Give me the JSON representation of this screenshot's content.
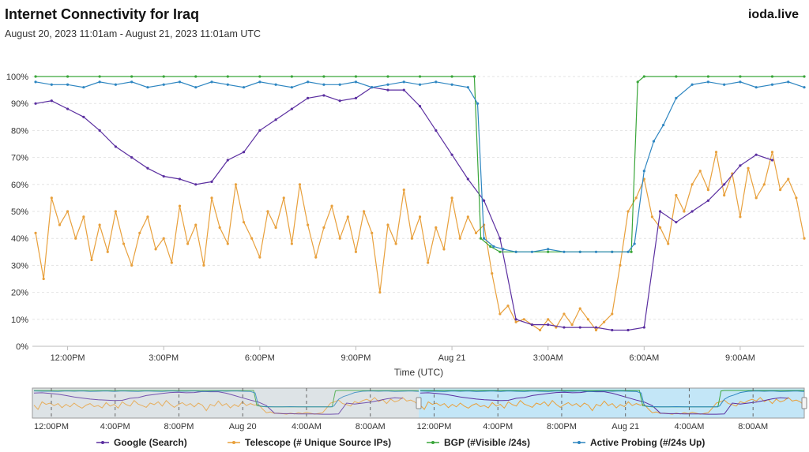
{
  "header": {
    "title": "Internet Connectivity for Iraq",
    "subtitle": "August 20, 2023 11:01am - August 21, 2023 11:01am UTC",
    "brand": "ioda.live"
  },
  "colors": {
    "google": "#5b2fa0",
    "telescope": "#e8a03c",
    "bgp": "#3aa63a",
    "probing": "#2e86c1",
    "navigator_selection": "#a9dcf3",
    "navigator_unselected": "#dde3e6"
  },
  "chart_data": {
    "type": "line",
    "xlabel": "Time (UTC)",
    "ylabel": "",
    "x_unit": "hours_since_2023-08-20T00:00Z",
    "xlim": [
      10.9,
      35.0
    ],
    "ylim": [
      0,
      100
    ],
    "y_ticks": [
      "0%",
      "10%",
      "20%",
      "30%",
      "40%",
      "50%",
      "60%",
      "70%",
      "80%",
      "90%",
      "100%"
    ],
    "x_ticks": [
      {
        "label": "12:00PM",
        "x": 12
      },
      {
        "label": "3:00PM",
        "x": 15
      },
      {
        "label": "6:00PM",
        "x": 18
      },
      {
        "label": "9:00PM",
        "x": 21
      },
      {
        "label": "Aug 21",
        "x": 24
      },
      {
        "label": "3:00AM",
        "x": 27
      },
      {
        "label": "6:00AM",
        "x": 30
      },
      {
        "label": "9:00AM",
        "x": 33
      }
    ],
    "legend_position": "bottom",
    "series": [
      {
        "name": "Google (Search)",
        "color": "#5b2fa0",
        "x": [
          11.0,
          11.5,
          12.0,
          12.5,
          13.0,
          13.5,
          14.0,
          14.5,
          15.0,
          15.5,
          16.0,
          16.5,
          17.0,
          17.5,
          18.0,
          18.5,
          19.0,
          19.5,
          20.0,
          20.5,
          21.0,
          21.5,
          22.0,
          22.5,
          23.0,
          23.5,
          24.0,
          24.5,
          25.0,
          25.5,
          26.0,
          26.5,
          27.0,
          27.5,
          28.0,
          28.5,
          29.0,
          29.5,
          30.0,
          30.5,
          31.0,
          31.5,
          32.0,
          32.5,
          33.0,
          33.5,
          34.0
        ],
        "y": [
          90,
          91,
          88,
          85,
          80,
          74,
          70,
          66,
          63,
          62,
          60,
          61,
          69,
          72,
          80,
          84,
          88,
          92,
          93,
          91,
          92,
          96,
          95,
          95,
          89,
          80,
          71,
          62,
          54,
          40,
          10,
          8,
          8,
          7,
          7,
          7,
          6,
          6,
          7,
          50,
          46,
          50,
          54,
          60,
          67,
          71,
          69
        ]
      },
      {
        "name": "Telescope (# Unique Source IPs)",
        "color": "#e8a03c",
        "x": [
          11.0,
          11.25,
          11.5,
          11.75,
          12.0,
          12.25,
          12.5,
          12.75,
          13.0,
          13.25,
          13.5,
          13.75,
          14.0,
          14.25,
          14.5,
          14.75,
          15.0,
          15.25,
          15.5,
          15.75,
          16.0,
          16.25,
          16.5,
          16.75,
          17.0,
          17.25,
          17.5,
          17.75,
          18.0,
          18.25,
          18.5,
          18.75,
          19.0,
          19.25,
          19.5,
          19.75,
          20.0,
          20.25,
          20.5,
          20.75,
          21.0,
          21.25,
          21.5,
          21.75,
          22.0,
          22.25,
          22.5,
          22.75,
          23.0,
          23.25,
          23.5,
          23.75,
          24.0,
          24.25,
          24.5,
          24.75,
          25.0,
          25.25,
          25.5,
          25.75,
          26.0,
          26.25,
          26.5,
          26.75,
          27.0,
          27.25,
          27.5,
          27.75,
          28.0,
          28.25,
          28.5,
          28.75,
          29.0,
          29.25,
          29.5,
          29.75,
          30.0,
          30.25,
          30.5,
          30.75,
          31.0,
          31.25,
          31.5,
          31.75,
          32.0,
          32.25,
          32.5,
          32.75,
          33.0,
          33.25,
          33.5,
          33.75,
          34.0,
          34.25,
          34.5,
          34.75,
          35.0
        ],
        "y": [
          42,
          25,
          55,
          45,
          50,
          40,
          48,
          32,
          45,
          35,
          50,
          38,
          30,
          42,
          48,
          36,
          40,
          31,
          52,
          38,
          45,
          30,
          55,
          44,
          38,
          60,
          46,
          40,
          33,
          50,
          44,
          55,
          38,
          60,
          45,
          33,
          44,
          52,
          40,
          48,
          35,
          50,
          42,
          20,
          45,
          38,
          58,
          40,
          48,
          31,
          44,
          36,
          55,
          40,
          48,
          42,
          45,
          27,
          12,
          15,
          9,
          10,
          8,
          6,
          10,
          7,
          12,
          8,
          14,
          10,
          6,
          9,
          12,
          30,
          50,
          55,
          62,
          48,
          44,
          38,
          56,
          50,
          60,
          65,
          58,
          72,
          56,
          64,
          48,
          66,
          55,
          60,
          72,
          58,
          62,
          55,
          40
        ]
      },
      {
        "name": "BGP (#Visible /24s)",
        "color": "#3aa63a",
        "x": [
          11.0,
          12.0,
          13.0,
          14.0,
          15.0,
          16.0,
          17.0,
          18.0,
          19.0,
          20.0,
          21.0,
          22.0,
          23.0,
          24.0,
          24.7,
          24.9,
          25.2,
          25.5,
          26.0,
          27.0,
          28.0,
          29.0,
          29.6,
          29.8,
          30.0,
          31.0,
          32.0,
          33.0,
          34.0,
          35.0
        ],
        "y": [
          100,
          100,
          100,
          100,
          100,
          100,
          100,
          100,
          100,
          100,
          100,
          100,
          100,
          100,
          100,
          40,
          37,
          35,
          35,
          35,
          35,
          35,
          35,
          98,
          100,
          100,
          100,
          100,
          100,
          100
        ]
      },
      {
        "name": "Active Probing (#/24s Up)",
        "color": "#2e86c1",
        "x": [
          11.0,
          11.5,
          12.0,
          12.5,
          13.0,
          13.5,
          14.0,
          14.5,
          15.0,
          15.5,
          16.0,
          16.5,
          17.0,
          17.5,
          18.0,
          18.5,
          19.0,
          19.5,
          20.0,
          20.5,
          21.0,
          21.5,
          22.0,
          22.5,
          23.0,
          23.5,
          24.0,
          24.5,
          24.8,
          25.0,
          25.3,
          25.6,
          26.0,
          26.5,
          27.0,
          27.5,
          28.0,
          28.5,
          29.0,
          29.5,
          29.7,
          30.0,
          30.3,
          30.6,
          31.0,
          31.5,
          32.0,
          32.5,
          33.0,
          33.5,
          34.0,
          34.5,
          35.0
        ],
        "y": [
          98,
          97,
          97,
          96,
          98,
          97,
          98,
          96,
          97,
          98,
          96,
          98,
          97,
          96,
          98,
          97,
          96,
          98,
          97,
          97,
          98,
          96,
          97,
          98,
          97,
          98,
          97,
          96,
          90,
          40,
          37,
          36,
          35,
          35,
          36,
          35,
          35,
          35,
          35,
          35,
          38,
          65,
          76,
          82,
          92,
          97,
          98,
          97,
          98,
          96,
          97,
          98,
          96
        ]
      }
    ]
  },
  "navigator": {
    "x_ticks": [
      "12:00PM",
      "4:00PM",
      "8:00PM",
      "Aug 20",
      "4:00AM",
      "8:00AM",
      "12:00PM",
      "4:00PM",
      "8:00PM",
      "Aug 21",
      "4:00AM",
      "8:00AM"
    ]
  }
}
